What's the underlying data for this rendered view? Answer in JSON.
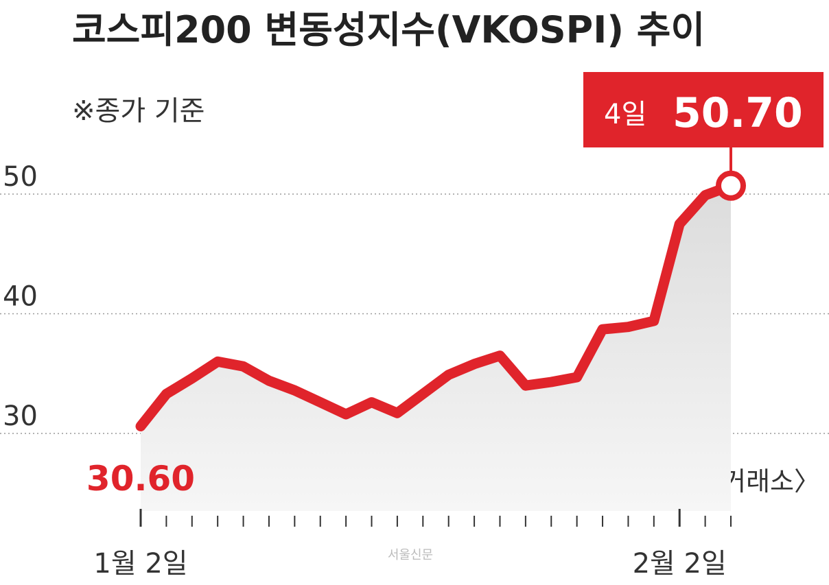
{
  "chart_data": {
    "type": "line",
    "title": "코스피200 변동성지수(VKOSPI) 추이",
    "subtitle": "※종가 기준",
    "source": "〈자료: 한국거래소〉",
    "credit": "서울신문",
    "annotation": "4일",
    "categories": [
      "1월 2일",
      null,
      null,
      null,
      null,
      null,
      null,
      null,
      null,
      null,
      null,
      null,
      null,
      null,
      null,
      null,
      null,
      null,
      null,
      null,
      null,
      "2월 2일",
      null,
      null
    ],
    "series": [
      {
        "name": "VKOSPI",
        "color": "#e0242b",
        "values": [
          30.6,
          33.3,
          34.6,
          36.0,
          35.6,
          34.4,
          33.6,
          32.6,
          31.6,
          32.6,
          31.7,
          33.3,
          34.9,
          35.8,
          36.5,
          34.0,
          34.3,
          34.7,
          38.7,
          38.9,
          39.4,
          47.5,
          49.9,
          50.7
        ],
        "value_labels": [
          "30.60",
          null,
          null,
          null,
          null,
          null,
          null,
          null,
          null,
          null,
          null,
          null,
          null,
          null,
          null,
          null,
          null,
          null,
          null,
          null,
          null,
          null,
          null,
          "50.70"
        ]
      }
    ],
    "ylim": [
      24,
      57
    ],
    "yticks": [
      30,
      40,
      50
    ],
    "grid": true
  }
}
